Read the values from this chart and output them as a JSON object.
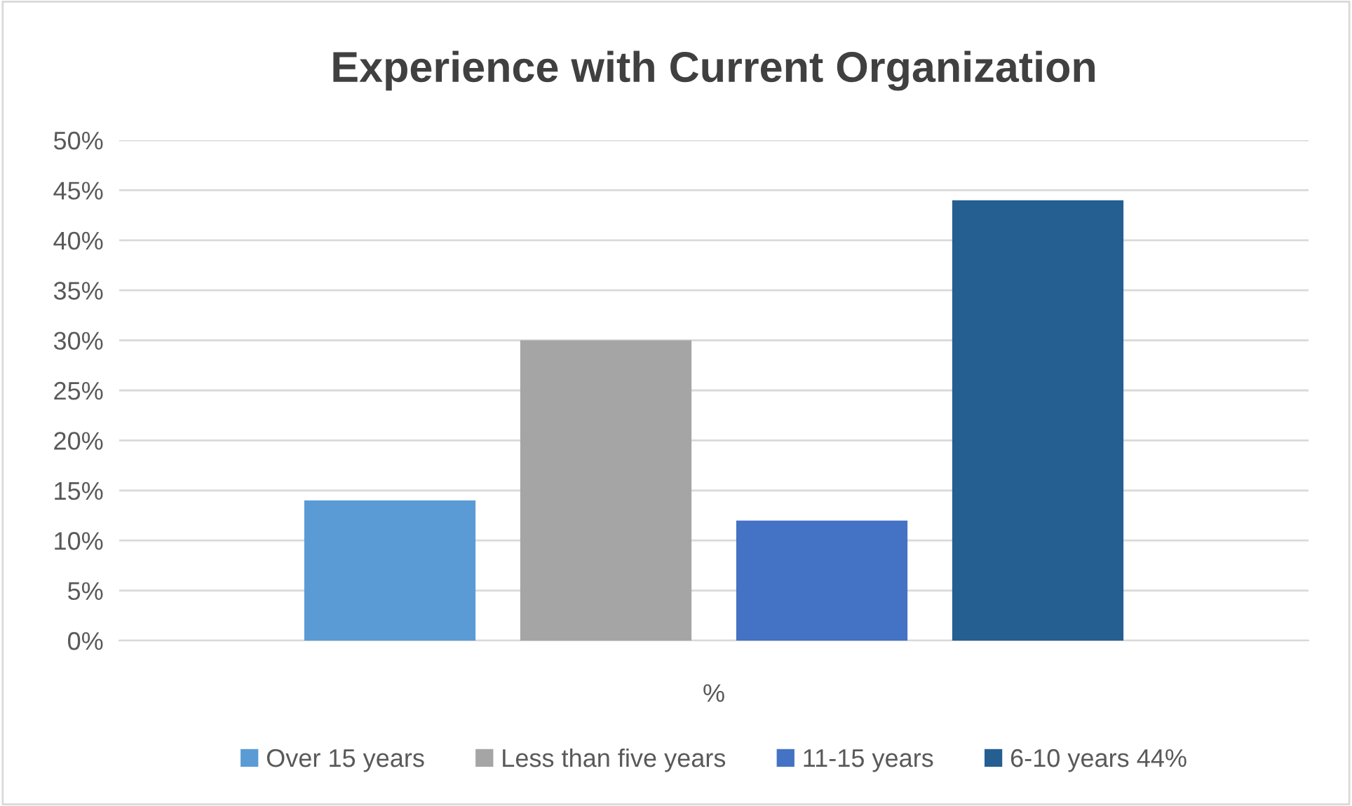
{
  "chart_data": {
    "type": "bar",
    "title": "Experience with Current Organization",
    "categories": [
      "%"
    ],
    "series": [
      {
        "name": "Over 15 years",
        "color": "#5b9bd5",
        "values": [
          14
        ]
      },
      {
        "name": "Less than five years",
        "color": "#a5a5a5",
        "values": [
          30
        ]
      },
      {
        "name": "11-15 years",
        "color": "#4472c4",
        "values": [
          12
        ]
      },
      {
        "name": "6-10 years 44%",
        "color": "#255e91",
        "values": [
          44
        ]
      }
    ],
    "ylim": [
      0,
      50
    ],
    "yticks": [
      {
        "value": 0,
        "label": "0%"
      },
      {
        "value": 5,
        "label": "5%"
      },
      {
        "value": 10,
        "label": "10%"
      },
      {
        "value": 15,
        "label": "15%"
      },
      {
        "value": 20,
        "label": "20%"
      },
      {
        "value": 25,
        "label": "25%"
      },
      {
        "value": 30,
        "label": "30%"
      },
      {
        "value": 35,
        "label": "35%"
      },
      {
        "value": 40,
        "label": "40%"
      },
      {
        "value": 45,
        "label": "45%"
      },
      {
        "value": 50,
        "label": "50%"
      }
    ],
    "grid": "y",
    "legend": "bottom"
  }
}
